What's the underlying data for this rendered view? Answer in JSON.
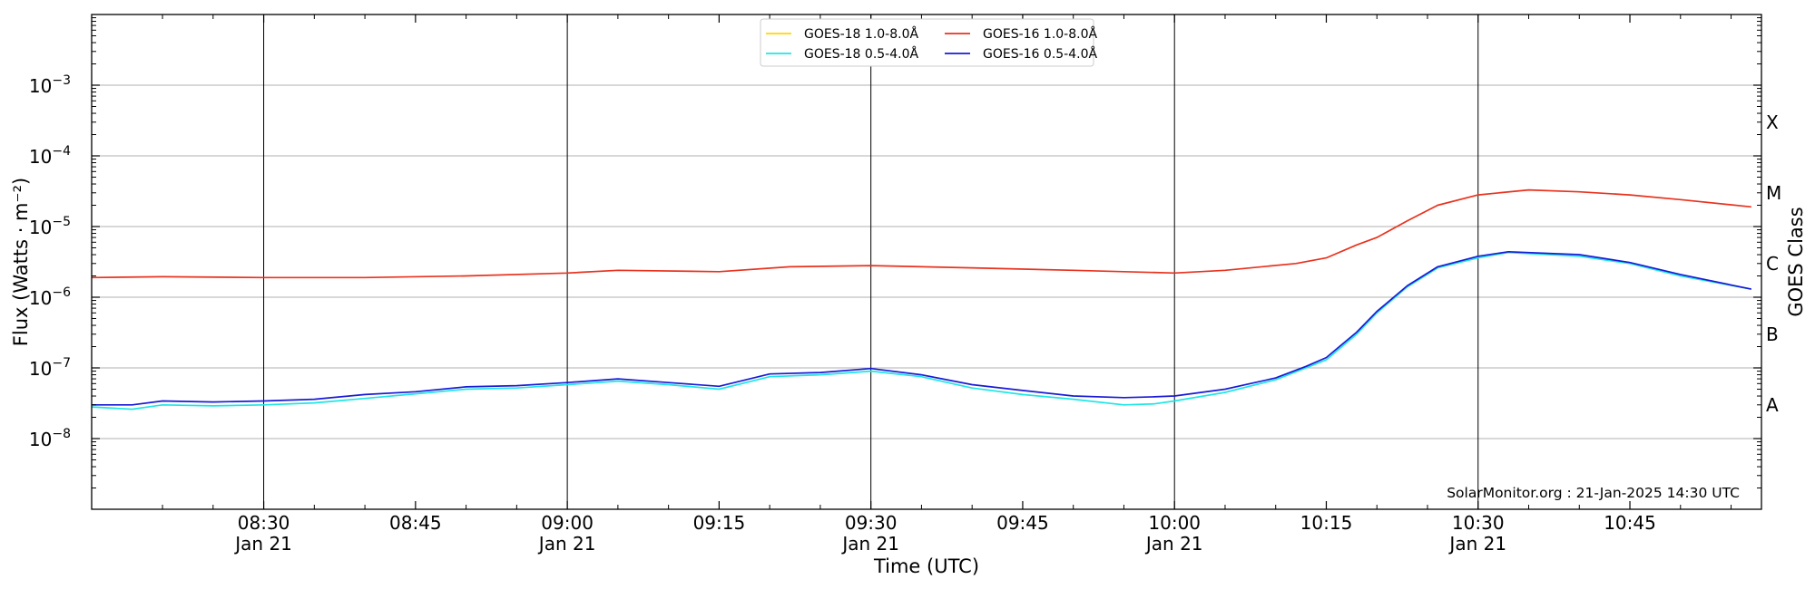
{
  "chart_data": {
    "type": "line",
    "xlabel": "Time (UTC)",
    "ylabel": "Flux (Watts · m⁻²)",
    "right_axis_label": "GOES Class",
    "xlim": [
      "08:13",
      "10:58"
    ],
    "y_scale": "log",
    "ylim": [
      1e-09,
      0.01
    ],
    "grid": "horizontal",
    "legend_position": "top-center",
    "x_ticks": [
      {
        "time": "08:30",
        "label": "08:30",
        "date": "Jan 21",
        "major": true
      },
      {
        "time": "08:45",
        "label": "08:45",
        "date": "",
        "major": false
      },
      {
        "time": "09:00",
        "label": "09:00",
        "date": "Jan 21",
        "major": true
      },
      {
        "time": "09:15",
        "label": "09:15",
        "date": "",
        "major": false
      },
      {
        "time": "09:30",
        "label": "09:30",
        "date": "Jan 21",
        "major": true
      },
      {
        "time": "09:45",
        "label": "09:45",
        "date": "",
        "major": false
      },
      {
        "time": "10:00",
        "label": "10:00",
        "date": "Jan 21",
        "major": true
      },
      {
        "time": "10:15",
        "label": "10:15",
        "date": "",
        "major": false
      },
      {
        "time": "10:30",
        "label": "10:30",
        "date": "Jan 21",
        "major": true
      },
      {
        "time": "10:45",
        "label": "10:45",
        "date": "",
        "major": false
      }
    ],
    "y_ticks": [
      {
        "value": 1e-08,
        "base": "10",
        "exp": "−8"
      },
      {
        "value": 1e-07,
        "base": "10",
        "exp": "−7"
      },
      {
        "value": 1e-06,
        "base": "10",
        "exp": "−6"
      },
      {
        "value": 1e-05,
        "base": "10",
        "exp": "−5"
      },
      {
        "value": 0.0001,
        "base": "10",
        "exp": "−4"
      },
      {
        "value": 0.001,
        "base": "10",
        "exp": "−3"
      }
    ],
    "goes_classes": [
      {
        "label": "A",
        "value": 3e-08
      },
      {
        "label": "B",
        "value": 3e-07
      },
      {
        "label": "C",
        "value": 3e-06
      },
      {
        "label": "M",
        "value": 3e-05
      },
      {
        "label": "X",
        "value": 0.0003
      }
    ],
    "annotation": "SolarMonitor.org : 21-Jan-2025 14:30 UTC",
    "series": [
      {
        "name": "GOES-18 1.0-8.0Å",
        "color": "#ffd700",
        "x": [],
        "y": []
      },
      {
        "name": "GOES-16 1.0-8.0Å",
        "color": "#e8321e",
        "x": [
          "08:13",
          "08:20",
          "08:30",
          "08:40",
          "08:50",
          "09:00",
          "09:05",
          "09:15",
          "09:22",
          "09:30",
          "09:40",
          "09:50",
          "10:00",
          "10:05",
          "10:12",
          "10:15",
          "10:18",
          "10:20",
          "10:23",
          "10:26",
          "10:30",
          "10:35",
          "10:40",
          "10:45",
          "10:50",
          "10:57"
        ],
        "y": [
          1.9e-06,
          1.95e-06,
          1.9e-06,
          1.9e-06,
          2e-06,
          2.2e-06,
          2.4e-06,
          2.3e-06,
          2.7e-06,
          2.8e-06,
          2.6e-06,
          2.4e-06,
          2.2e-06,
          2.4e-06,
          3e-06,
          3.6e-06,
          5.5e-06,
          7e-06,
          1.2e-05,
          2e-05,
          2.8e-05,
          3.3e-05,
          3.1e-05,
          2.8e-05,
          2.4e-05,
          1.9e-05
        ]
      },
      {
        "name": "GOES-18 0.5-4.0Å",
        "color": "#1ee6e6",
        "x": [
          "08:13",
          "08:17",
          "08:20",
          "08:25",
          "08:30",
          "08:35",
          "08:40",
          "08:45",
          "08:50",
          "08:55",
          "09:00",
          "09:05",
          "09:10",
          "09:15",
          "09:20",
          "09:25",
          "09:30",
          "09:35",
          "09:40",
          "09:45",
          "09:50",
          "09:55",
          "09:58",
          "10:00",
          "10:05",
          "10:10",
          "10:13",
          "10:15",
          "10:18",
          "10:20",
          "10:23",
          "10:26",
          "10:30",
          "10:33",
          "10:40",
          "10:45",
          "10:50",
          "10:57"
        ],
        "y": [
          2.8e-08,
          2.6e-08,
          3e-08,
          2.9e-08,
          3e-08,
          3.2e-08,
          3.7e-08,
          4.3e-08,
          5e-08,
          5.2e-08,
          5.8e-08,
          6.5e-08,
          5.8e-08,
          5e-08,
          7.5e-08,
          8e-08,
          9e-08,
          7.5e-08,
          5.2e-08,
          4.2e-08,
          3.6e-08,
          3e-08,
          3.1e-08,
          3.4e-08,
          4.5e-08,
          6.8e-08,
          1e-07,
          1.3e-07,
          3e-07,
          6e-07,
          1.4e-06,
          2.6e-06,
          3.6e-06,
          4.3e-06,
          3.8e-06,
          3e-06,
          2e-06,
          1.3e-06
        ]
      },
      {
        "name": "GOES-16 0.5-4.0Å",
        "color": "#1a1ad6",
        "x": [
          "08:13",
          "08:17",
          "08:20",
          "08:25",
          "08:30",
          "08:35",
          "08:40",
          "08:45",
          "08:50",
          "08:55",
          "09:00",
          "09:05",
          "09:10",
          "09:15",
          "09:20",
          "09:25",
          "09:30",
          "09:35",
          "09:40",
          "09:45",
          "09:50",
          "09:55",
          "09:58",
          "10:00",
          "10:05",
          "10:10",
          "10:13",
          "10:15",
          "10:18",
          "10:20",
          "10:23",
          "10:26",
          "10:30",
          "10:33",
          "10:40",
          "10:45",
          "10:50",
          "10:57"
        ],
        "y": [
          3e-08,
          3e-08,
          3.4e-08,
          3.3e-08,
          3.4e-08,
          3.6e-08,
          4.2e-08,
          4.6e-08,
          5.4e-08,
          5.6e-08,
          6.2e-08,
          7e-08,
          6.2e-08,
          5.5e-08,
          8.2e-08,
          8.6e-08,
          9.8e-08,
          8e-08,
          5.8e-08,
          4.8e-08,
          4e-08,
          3.8e-08,
          3.9e-08,
          4e-08,
          5e-08,
          7.2e-08,
          1.05e-07,
          1.4e-07,
          3.2e-07,
          6.3e-07,
          1.45e-06,
          2.7e-06,
          3.8e-06,
          4.4e-06,
          4e-06,
          3.1e-06,
          2.1e-06,
          1.3e-06
        ]
      }
    ]
  }
}
